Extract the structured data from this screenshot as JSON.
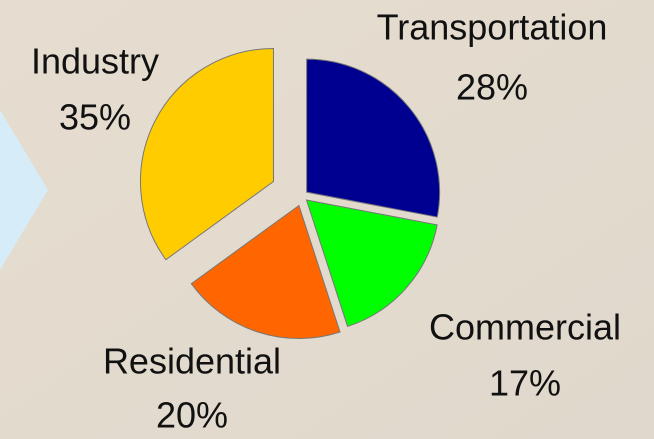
{
  "chart_data": {
    "type": "pie",
    "categories": [
      "Transportation",
      "Commercial",
      "Residential",
      "Industry"
    ],
    "values": [
      28,
      17,
      20,
      35
    ],
    "value_labels": [
      "28%",
      "17%",
      "20%",
      "35%"
    ],
    "colors": [
      "#000090",
      "#00ff00",
      "#ff6600",
      "#ffcc00"
    ]
  }
}
